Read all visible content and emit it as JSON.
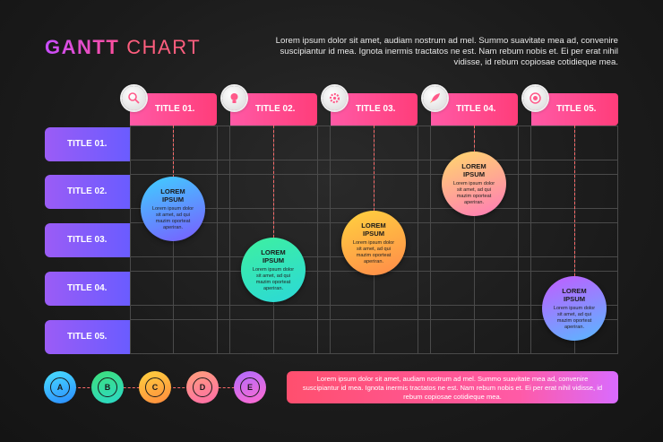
{
  "header": {
    "title_main": "GANTT",
    "title_accent": "CHART",
    "description": "Lorem ipsum dolor sit amet, audiam nostrum ad mel. Summo suavitate mea ad, convenire suscipiantur id mea. Ignota inermis tractatos ne est. Nam rebum nobis et. Ei per erat nihil vidisse, id rebum copiosae cotidieque mea."
  },
  "columns": [
    {
      "label": "TITLE 01.",
      "icon": "magnifier-icon"
    },
    {
      "label": "TITLE 02.",
      "icon": "lightbulb-icon"
    },
    {
      "label": "TITLE 03.",
      "icon": "gear-icon"
    },
    {
      "label": "TITLE 04.",
      "icon": "rocket-icon"
    },
    {
      "label": "TITLE 05.",
      "icon": "target-icon"
    }
  ],
  "rows": [
    {
      "label": "TITLE 01."
    },
    {
      "label": "TITLE 02."
    },
    {
      "label": "TITLE 03."
    },
    {
      "label": "TITLE 04."
    },
    {
      "label": "TITLE 05."
    }
  ],
  "bubbles": [
    {
      "title": "LOREM IPSUM",
      "text": "Lorem ipsum dolor sit amet, ad qui mazim oporteat aperiran.",
      "color_a": "#3fd0ff",
      "color_b": "#7a5cff"
    },
    {
      "title": "LOREM IPSUM",
      "text": "Lorem ipsum dolor sit amet, ad qui mazim oporteat aperiran.",
      "color_a": "#3ef0a0",
      "color_b": "#2bd8d8"
    },
    {
      "title": "LOREM IPSUM",
      "text": "Lorem ipsum dolor sit amet, ad qui mazim oporteat aperiran.",
      "color_a": "#ffd23f",
      "color_b": "#ff8a4a"
    },
    {
      "title": "LOREM IPSUM",
      "text": "Lorem ipsum dolor sit amet, ad qui mazim oporteat aperiran.",
      "color_a": "#ffd86b",
      "color_b": "#ff7ab8"
    },
    {
      "title": "LOREM IPSUM",
      "text": "Lorem ipsum dolor sit amet, ad qui mazim oporteat aperiran.",
      "color_a": "#c25cff",
      "color_b": "#58b8ff"
    }
  ],
  "legend": [
    {
      "label": "A",
      "color_a": "#2ab8ff",
      "color_b": "#4ae0ff"
    },
    {
      "label": "B",
      "color_a": "#3ee07a",
      "color_b": "#2bd8c8"
    },
    {
      "label": "C",
      "color_a": "#ffd23f",
      "color_b": "#ff8a3d"
    },
    {
      "label": "D",
      "color_a": "#ffa07a",
      "color_b": "#ff6ba8"
    },
    {
      "label": "E",
      "color_a": "#b06bff",
      "color_b": "#ff6bd0"
    }
  ],
  "footer": {
    "description": "Lorem ipsum dolor sit amet, audiam nostrum ad mel. Summo suavitate mea ad, convenire suscipiantur id mea. Ignota inermis tractatos ne est. Nam rebum nobis et. Ei per erat nihil vidisse, id rebum copiosae cotidieque mea."
  }
}
